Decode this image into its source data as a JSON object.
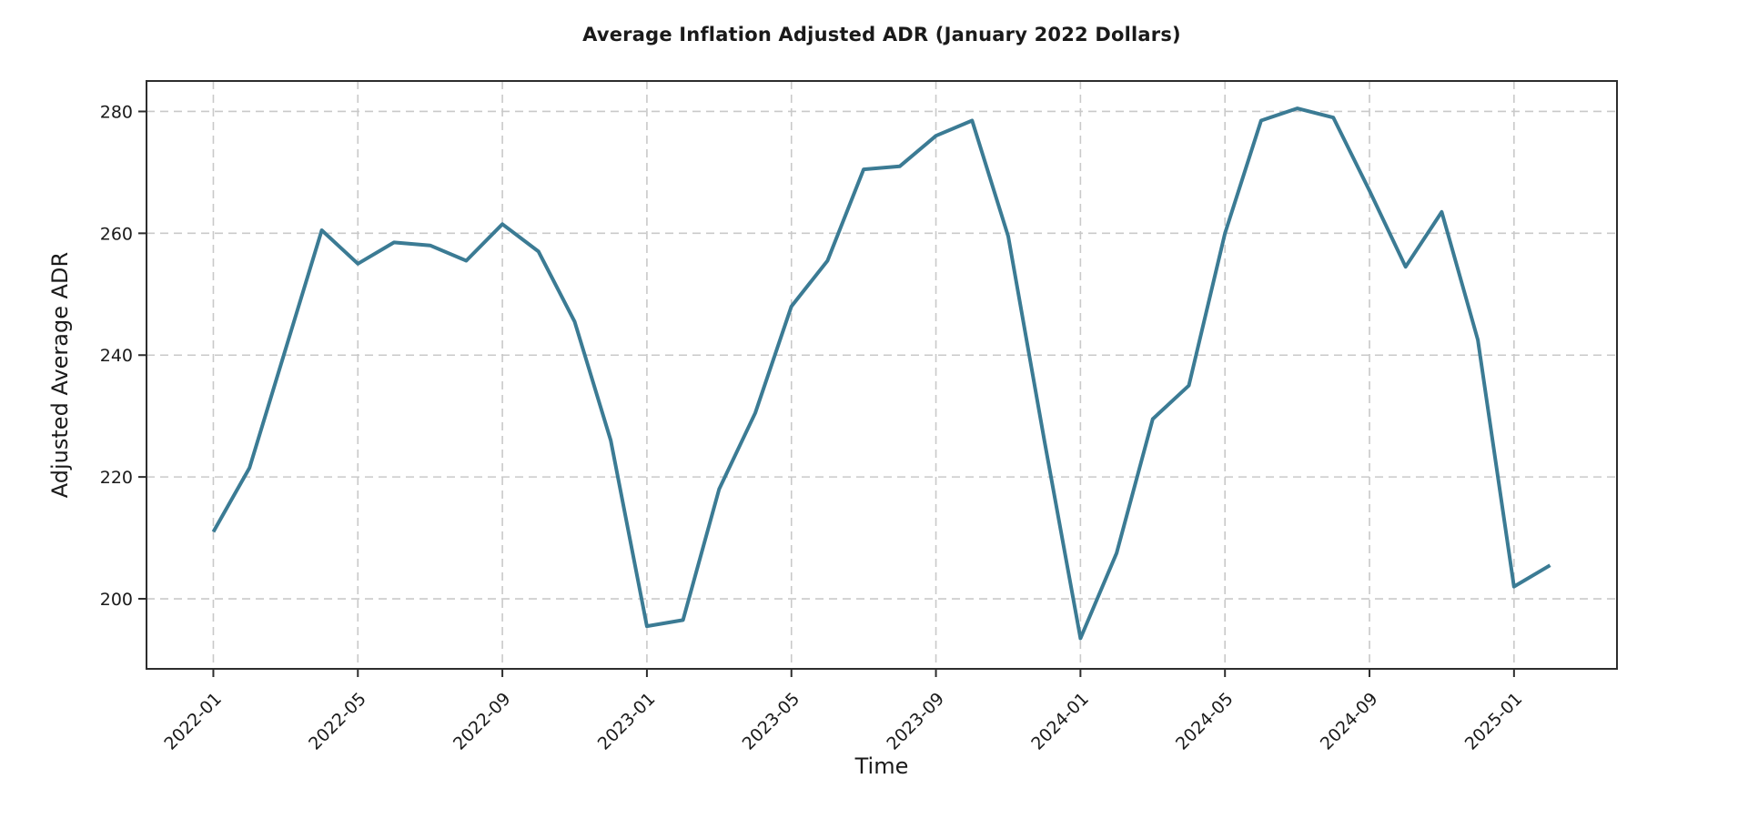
{
  "page": {
    "background": "#ffffff"
  },
  "chart": {
    "title": "Average Inflation Adjusted ADR (January 2022 Dollars)",
    "xlabel": "Time",
    "ylabel": "Adjusted Average ADR"
  },
  "chart_data": {
    "type": "line",
    "title": "Average Inflation Adjusted ADR (January 2022 Dollars)",
    "xlabel": "Time",
    "ylabel": "Adjusted Average ADR",
    "x": [
      "2022-01",
      "2022-02",
      "2022-03",
      "2022-04",
      "2022-05",
      "2022-06",
      "2022-07",
      "2022-08",
      "2022-09",
      "2022-10",
      "2022-11",
      "2022-12",
      "2023-01",
      "2023-02",
      "2023-03",
      "2023-04",
      "2023-05",
      "2023-06",
      "2023-07",
      "2023-08",
      "2023-09",
      "2023-10",
      "2023-11",
      "2023-12",
      "2024-01",
      "2024-02",
      "2024-03",
      "2024-04",
      "2024-05",
      "2024-06",
      "2024-07",
      "2024-08",
      "2024-09",
      "2024-10",
      "2024-11",
      "2024-12",
      "2025-01",
      "2025-02"
    ],
    "values": [
      211,
      221.5,
      241,
      260.5,
      255,
      258.5,
      258,
      255.5,
      261.5,
      257,
      245.5,
      226,
      195.5,
      196.5,
      218,
      230.5,
      248,
      255.5,
      270.5,
      271,
      276,
      278.5,
      259.5,
      226,
      193.5,
      207.5,
      229.5,
      235,
      260,
      278.5,
      280.5,
      279,
      267,
      254.5,
      263.5,
      242.5,
      202,
      205.5
    ],
    "x_ticks": [
      {
        "index": 0,
        "label": "2022-01"
      },
      {
        "index": 4,
        "label": "2022-05"
      },
      {
        "index": 8,
        "label": "2022-09"
      },
      {
        "index": 12,
        "label": "2023-01"
      },
      {
        "index": 16,
        "label": "2023-05"
      },
      {
        "index": 20,
        "label": "2023-09"
      },
      {
        "index": 24,
        "label": "2024-01"
      },
      {
        "index": 28,
        "label": "2024-05"
      },
      {
        "index": 32,
        "label": "2024-09"
      },
      {
        "index": 36,
        "label": "2025-01"
      }
    ],
    "y_ticks": [
      200,
      220,
      240,
      260,
      280
    ],
    "ylim": [
      188.5,
      285
    ],
    "xlim_month_index": [
      -1.85,
      38.85
    ],
    "x_tick_rotation_deg": 45,
    "grid": "both-dashed",
    "legend": "none",
    "line_color": "#3b7b94",
    "grid_color": "#c9c9c9",
    "spine_color": "#2d2d2d",
    "tick_text_color": "#1a1a1a",
    "line_width": 4
  }
}
